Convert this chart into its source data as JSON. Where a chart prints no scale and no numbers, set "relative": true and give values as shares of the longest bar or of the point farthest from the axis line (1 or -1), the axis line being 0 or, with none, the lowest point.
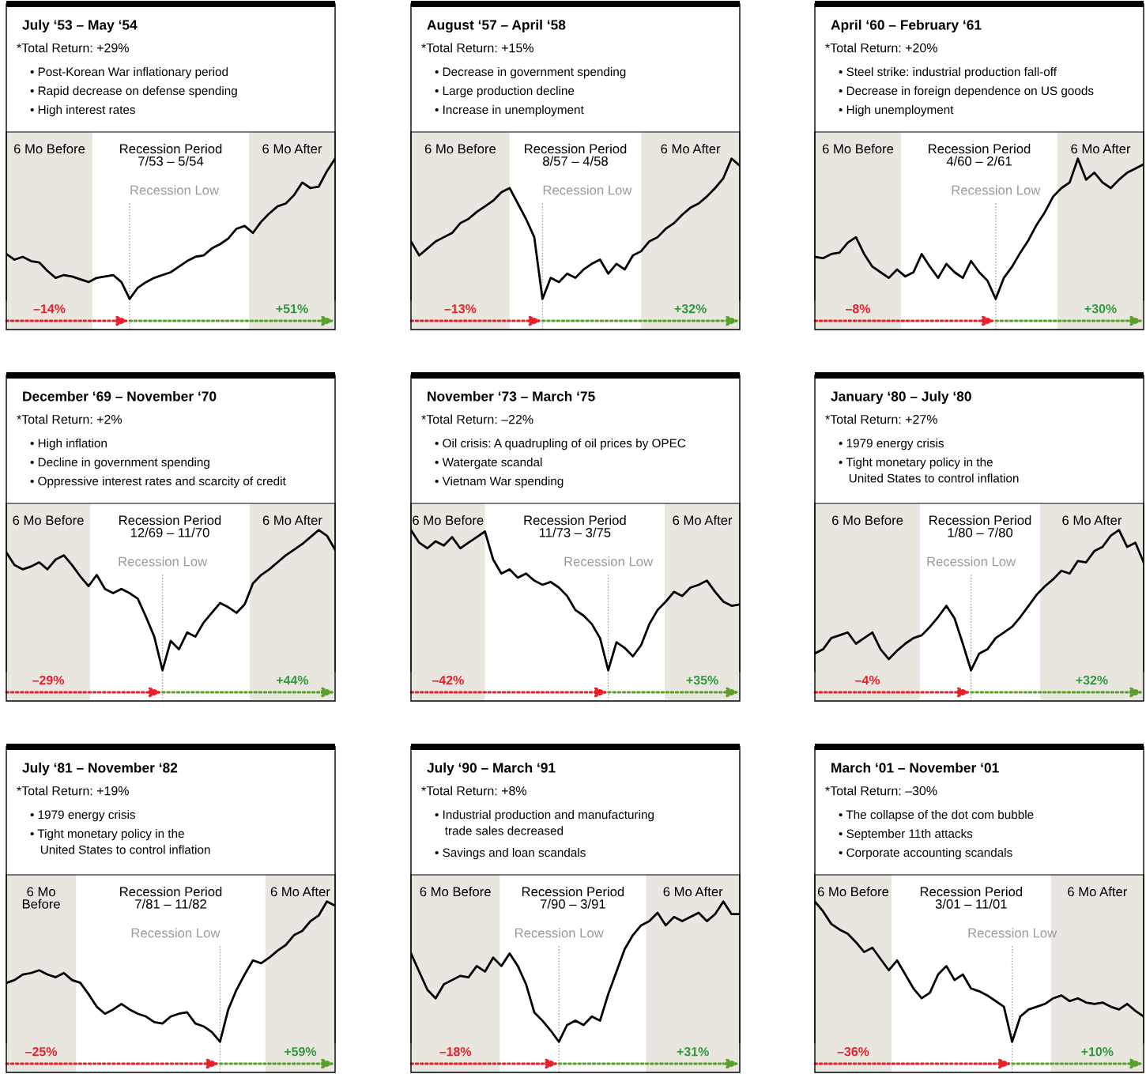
{
  "chart_data": [
    {
      "type": "line",
      "relative": true,
      "title": "July ‘53 – May ‘54",
      "subtitle": "*Total Return: +29%",
      "categories": [
        null,
        null,
        null,
        null,
        null,
        null,
        null,
        null,
        null,
        null,
        null,
        null,
        null,
        null,
        null,
        null,
        null,
        null,
        null,
        null,
        null,
        null,
        null,
        null,
        null,
        null,
        null,
        null,
        null,
        null,
        null,
        null,
        null,
        null,
        null,
        null,
        null,
        null,
        null,
        null,
        null
      ],
      "series": [
        {
          "color": "#000000",
          "values": [
            0.32,
            0.28,
            0.3,
            0.27,
            0.26,
            0.2,
            0.15,
            0.17,
            0.16,
            0.14,
            0.12,
            0.15,
            0.16,
            0.17,
            0.12,
            0,
            0.08,
            0.12,
            0.15,
            0.17,
            0.19,
            0.23,
            0.27,
            0.3,
            0.31,
            0.36,
            0.39,
            0.43,
            0.5,
            0.52,
            0.47,
            0.55,
            0.61,
            0.66,
            0.68,
            0.74,
            0.83,
            0.79,
            0.8,
            0.91,
            1.0
          ]
        }
      ],
      "annotations": [
        "• Post-Korean War inflationary period",
        "• Rapid decrease on defense spending",
        "• High interest rates",
        "6 Mo Before",
        "Recession Period\n7/53 – 5/54",
        "6 Mo After",
        "Recession Low",
        "–14%",
        "+51%"
      ]
    },
    {
      "type": "line",
      "relative": true,
      "title": "August ‘57 – April ‘58",
      "subtitle": "*Total Return: +15%",
      "categories": [
        null,
        null,
        null,
        null,
        null,
        null,
        null,
        null,
        null,
        null,
        null,
        null,
        null,
        null,
        null,
        null,
        null,
        null,
        null,
        null,
        null,
        null,
        null,
        null,
        null,
        null,
        null,
        null,
        null,
        null,
        null,
        null,
        null,
        null,
        null,
        null,
        null,
        null,
        null,
        null,
        null
      ],
      "series": [
        {
          "color": "#000000",
          "values": [
            0.41,
            0.31,
            0.36,
            0.41,
            0.44,
            0.47,
            0.54,
            0.57,
            0.62,
            0.66,
            0.7,
            0.76,
            0.79,
            0.68,
            0.57,
            0.44,
            0,
            0.15,
            0.12,
            0.18,
            0.15,
            0.21,
            0.25,
            0.28,
            0.18,
            0.25,
            0.21,
            0.31,
            0.34,
            0.41,
            0.44,
            0.5,
            0.54,
            0.6,
            0.65,
            0.68,
            0.73,
            0.79,
            0.86,
            1.0,
            0.95
          ]
        }
      ],
      "annotations": [
        "• Decrease in government spending",
        "• Large production decline",
        "• Increase in unemployment",
        "6 Mo Before",
        "Recession Period\n8/57 – 4/58",
        "6 Mo After",
        "Recession Low",
        "–13%",
        "+32%"
      ]
    },
    {
      "type": "line",
      "relative": true,
      "title": "April ‘60 – February ‘61",
      "subtitle": "*Total Return: +20%",
      "categories": [
        null,
        null,
        null,
        null,
        null,
        null,
        null,
        null,
        null,
        null,
        null,
        null,
        null,
        null,
        null,
        null,
        null,
        null,
        null,
        null,
        null,
        null,
        null,
        null,
        null,
        null,
        null,
        null,
        null,
        null,
        null,
        null,
        null,
        null,
        null,
        null,
        null,
        null,
        null,
        null,
        null
      ],
      "series": [
        {
          "color": "#000000",
          "values": [
            0.3,
            0.29,
            0.32,
            0.33,
            0.4,
            0.44,
            0.32,
            0.23,
            0.19,
            0.15,
            0.21,
            0.16,
            0.19,
            0.32,
            0.23,
            0.15,
            0.25,
            0.19,
            0.15,
            0.27,
            0.19,
            0.13,
            0,
            0.15,
            0.23,
            0.33,
            0.42,
            0.53,
            0.62,
            0.73,
            0.79,
            0.83,
            1.0,
            0.85,
            0.9,
            0.83,
            0.79,
            0.85,
            0.9,
            0.93,
            0.96
          ]
        }
      ],
      "annotations": [
        "• Steel strike: industrial production fall-off",
        "• Decrease in foreign dependence on US goods",
        "• High unemployment",
        "6 Mo Before",
        "Recession Period\n4/60 – 2/61",
        "6 Mo After",
        "Recession Low",
        "–8%",
        "+30%"
      ]
    },
    {
      "type": "line",
      "relative": true,
      "title": "December ‘69 – November ‘70",
      "subtitle": "*Total Return: +2%",
      "categories": [
        null,
        null,
        null,
        null,
        null,
        null,
        null,
        null,
        null,
        null,
        null,
        null,
        null,
        null,
        null,
        null,
        null,
        null,
        null,
        null,
        null,
        null,
        null,
        null,
        null,
        null,
        null,
        null,
        null,
        null,
        null,
        null,
        null,
        null,
        null,
        null,
        null,
        null,
        null,
        null,
        null
      ],
      "series": [
        {
          "color": "#000000",
          "values": [
            0.84,
            0.75,
            0.72,
            0.74,
            0.77,
            0.72,
            0.79,
            0.82,
            0.75,
            0.67,
            0.6,
            0.68,
            0.58,
            0.55,
            0.58,
            0.55,
            0.51,
            0.38,
            0.24,
            0,
            0.21,
            0.15,
            0.27,
            0.24,
            0.34,
            0.41,
            0.48,
            0.45,
            0.41,
            0.47,
            0.62,
            0.68,
            0.72,
            0.77,
            0.82,
            0.86,
            0.9,
            0.95,
            1.0,
            0.96,
            0.86
          ]
        }
      ],
      "annotations": [
        "• High inflation",
        "• Decline in government spending",
        "• Oppressive interest rates and scarcity of credit",
        "6 Mo Before",
        "Recession Period\n12/69 – 11/70",
        "6 Mo After",
        "Recession Low",
        "–29%",
        "+44%"
      ]
    },
    {
      "type": "line",
      "relative": true,
      "title": "November ‘73 – March ‘75",
      "subtitle": "*Total Return: –22%",
      "categories": [
        null,
        null,
        null,
        null,
        null,
        null,
        null,
        null,
        null,
        null,
        null,
        null,
        null,
        null,
        null,
        null,
        null,
        null,
        null,
        null,
        null,
        null,
        null,
        null,
        null,
        null,
        null,
        null,
        null,
        null,
        null,
        null,
        null,
        null,
        null,
        null,
        null,
        null,
        null,
        null,
        null
      ],
      "series": [
        {
          "color": "#000000",
          "values": [
            1.0,
            0.91,
            0.87,
            0.92,
            0.89,
            0.95,
            0.87,
            0.91,
            0.95,
            0.99,
            0.79,
            0.69,
            0.72,
            0.66,
            0.69,
            0.64,
            0.61,
            0.63,
            0.59,
            0.53,
            0.43,
            0.39,
            0.33,
            0.23,
            0,
            0.2,
            0.16,
            0.1,
            0.18,
            0.33,
            0.43,
            0.49,
            0.56,
            0.53,
            0.59,
            0.61,
            0.64,
            0.56,
            0.49,
            0.46,
            0.47
          ]
        }
      ],
      "annotations": [
        "• Oil crisis: A quadrupling of oil prices by OPEC",
        "• Watergate scandal",
        "• Vietnam War spending",
        "6 Mo Before",
        "Recession Period\n11/73 – 3/75",
        "6 Mo After",
        "Recession Low",
        "–42%",
        "+35%"
      ]
    },
    {
      "type": "line",
      "relative": true,
      "title": "January ‘80 – July ‘80",
      "subtitle": "*Total Return: +27%",
      "categories": [
        null,
        null,
        null,
        null,
        null,
        null,
        null,
        null,
        null,
        null,
        null,
        null,
        null,
        null,
        null,
        null,
        null,
        null,
        null,
        null,
        null,
        null,
        null,
        null,
        null,
        null,
        null,
        null,
        null,
        null,
        null,
        null,
        null,
        null,
        null,
        null,
        null,
        null,
        null,
        null,
        null
      ],
      "series": [
        {
          "color": "#000000",
          "values": [
            0.12,
            0.15,
            0.23,
            0.25,
            0.27,
            0.19,
            0.23,
            0.27,
            0.15,
            0.08,
            0.14,
            0.19,
            0.23,
            0.25,
            0.31,
            0.38,
            0.46,
            0.37,
            0.19,
            0,
            0.12,
            0.15,
            0.23,
            0.27,
            0.31,
            0.38,
            0.46,
            0.54,
            0.6,
            0.65,
            0.71,
            0.69,
            0.78,
            0.77,
            0.85,
            0.88,
            0.96,
            1.0,
            0.88,
            0.91,
            0.77
          ]
        }
      ],
      "annotations": [
        "• 1979 energy crisis",
        "• Tight monetary policy in the\n   United States to control inflation",
        "6 Mo Before",
        "Recession Period\n1/80 – 7/80",
        "6 Mo After",
        "Recession Low",
        "–4%",
        "+32%"
      ]
    },
    {
      "type": "line",
      "relative": true,
      "title": "July ‘81 – November ‘82",
      "subtitle": "*Total Return: +19%",
      "categories": [
        null,
        null,
        null,
        null,
        null,
        null,
        null,
        null,
        null,
        null,
        null,
        null,
        null,
        null,
        null,
        null,
        null,
        null,
        null,
        null,
        null,
        null,
        null,
        null,
        null,
        null,
        null,
        null,
        null,
        null,
        null,
        null,
        null,
        null,
        null,
        null,
        null,
        null,
        null,
        null,
        null
      ],
      "series": [
        {
          "color": "#000000",
          "values": [
            0.42,
            0.44,
            0.48,
            0.49,
            0.51,
            0.48,
            0.46,
            0.49,
            0.44,
            0.42,
            0.34,
            0.25,
            0.2,
            0.23,
            0.27,
            0.23,
            0.2,
            0.18,
            0.14,
            0.13,
            0.18,
            0.2,
            0.21,
            0.13,
            0.11,
            0.07,
            0,
            0.23,
            0.37,
            0.48,
            0.58,
            0.56,
            0.6,
            0.65,
            0.69,
            0.76,
            0.79,
            0.86,
            0.9,
            1.0,
            0.97
          ]
        }
      ],
      "annotations": [
        "• 1979 energy crisis",
        "• Tight monetary policy in the\n   United States to control inflation",
        "6 Mo\nBefore",
        "Recession Period\n7/81 – 11/82",
        "6 Mo After",
        "Recession Low",
        "–25%",
        "+59%"
      ]
    },
    {
      "type": "line",
      "relative": true,
      "title": "July ‘90 – March ‘91",
      "subtitle": "*Total Return: +8%",
      "categories": [
        null,
        null,
        null,
        null,
        null,
        null,
        null,
        null,
        null,
        null,
        null,
        null,
        null,
        null,
        null,
        null,
        null,
        null,
        null,
        null,
        null,
        null,
        null,
        null,
        null,
        null,
        null,
        null,
        null,
        null,
        null,
        null,
        null,
        null,
        null,
        null,
        null,
        null,
        null,
        null,
        null
      ],
      "series": [
        {
          "color": "#000000",
          "values": [
            0.63,
            0.5,
            0.37,
            0.31,
            0.41,
            0.44,
            0.47,
            0.46,
            0.54,
            0.5,
            0.6,
            0.54,
            0.63,
            0.54,
            0.41,
            0.21,
            0.15,
            0.08,
            0,
            0.12,
            0.15,
            0.12,
            0.18,
            0.15,
            0.34,
            0.5,
            0.66,
            0.76,
            0.83,
            0.86,
            0.92,
            0.83,
            0.89,
            0.86,
            0.89,
            0.92,
            0.86,
            0.91,
            1.0,
            0.91,
            0.91
          ]
        }
      ],
      "annotations": [
        "• Industrial production and manufacturing\n   trade sales decreased",
        "• Savings and loan scandals",
        "6 Mo Before",
        "Recession Period\n7/90 – 3/91",
        "6 Mo After",
        "Recession Low",
        "–18%",
        "+31%"
      ]
    },
    {
      "type": "line",
      "relative": true,
      "title": "March ‘01 – November ‘01",
      "subtitle": "*Total Return: –30%",
      "categories": [
        null,
        null,
        null,
        null,
        null,
        null,
        null,
        null,
        null,
        null,
        null,
        null,
        null,
        null,
        null,
        null,
        null,
        null,
        null,
        null,
        null,
        null,
        null,
        null,
        null,
        null,
        null,
        null,
        null,
        null,
        null,
        null,
        null,
        null,
        null,
        null,
        null,
        null,
        null,
        null,
        null
      ],
      "series": [
        {
          "color": "#000000",
          "values": [
            1.0,
            0.93,
            0.84,
            0.8,
            0.77,
            0.71,
            0.64,
            0.67,
            0.59,
            0.51,
            0.58,
            0.48,
            0.38,
            0.31,
            0.35,
            0.48,
            0.54,
            0.44,
            0.48,
            0.38,
            0.36,
            0.33,
            0.29,
            0.25,
            0,
            0.18,
            0.23,
            0.25,
            0.27,
            0.31,
            0.33,
            0.29,
            0.31,
            0.28,
            0.27,
            0.28,
            0.25,
            0.23,
            0.27,
            0.22,
            0.18
          ]
        }
      ],
      "annotations": [
        "• The collapse of the dot com bubble",
        "• September 11th attacks",
        "• Corporate accounting scandals",
        "6 Mo Before",
        "Recession Period\n3/01 – 11/01",
        "6 Mo After",
        "Recession Low",
        "–36%",
        "+10%"
      ]
    }
  ]
}
